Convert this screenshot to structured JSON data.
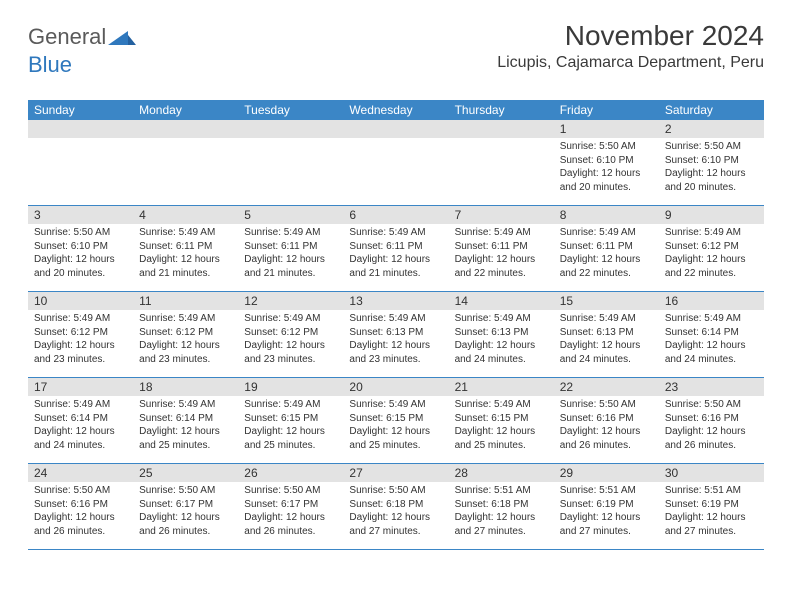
{
  "logo": {
    "text_general": "General",
    "text_blue": "Blue",
    "accent_color": "#2f78bd",
    "gray_color": "#5a5a5a"
  },
  "header": {
    "month_title": "November 2024",
    "location": "Licupis, Cajamarca Department, Peru"
  },
  "colors": {
    "header_bg": "#3b86c6",
    "header_text": "#ffffff",
    "daynum_bg": "#e3e3e3",
    "border": "#3b86c6",
    "text": "#333333",
    "page_bg": "#ffffff"
  },
  "day_headers": [
    "Sunday",
    "Monday",
    "Tuesday",
    "Wednesday",
    "Thursday",
    "Friday",
    "Saturday"
  ],
  "weeks": [
    [
      {
        "num": "",
        "sunrise": "",
        "sunset": "",
        "daylight": ""
      },
      {
        "num": "",
        "sunrise": "",
        "sunset": "",
        "daylight": ""
      },
      {
        "num": "",
        "sunrise": "",
        "sunset": "",
        "daylight": ""
      },
      {
        "num": "",
        "sunrise": "",
        "sunset": "",
        "daylight": ""
      },
      {
        "num": "",
        "sunrise": "",
        "sunset": "",
        "daylight": ""
      },
      {
        "num": "1",
        "sunrise": "Sunrise: 5:50 AM",
        "sunset": "Sunset: 6:10 PM",
        "daylight": "Daylight: 12 hours and 20 minutes."
      },
      {
        "num": "2",
        "sunrise": "Sunrise: 5:50 AM",
        "sunset": "Sunset: 6:10 PM",
        "daylight": "Daylight: 12 hours and 20 minutes."
      }
    ],
    [
      {
        "num": "3",
        "sunrise": "Sunrise: 5:50 AM",
        "sunset": "Sunset: 6:10 PM",
        "daylight": "Daylight: 12 hours and 20 minutes."
      },
      {
        "num": "4",
        "sunrise": "Sunrise: 5:49 AM",
        "sunset": "Sunset: 6:11 PM",
        "daylight": "Daylight: 12 hours and 21 minutes."
      },
      {
        "num": "5",
        "sunrise": "Sunrise: 5:49 AM",
        "sunset": "Sunset: 6:11 PM",
        "daylight": "Daylight: 12 hours and 21 minutes."
      },
      {
        "num": "6",
        "sunrise": "Sunrise: 5:49 AM",
        "sunset": "Sunset: 6:11 PM",
        "daylight": "Daylight: 12 hours and 21 minutes."
      },
      {
        "num": "7",
        "sunrise": "Sunrise: 5:49 AM",
        "sunset": "Sunset: 6:11 PM",
        "daylight": "Daylight: 12 hours and 22 minutes."
      },
      {
        "num": "8",
        "sunrise": "Sunrise: 5:49 AM",
        "sunset": "Sunset: 6:11 PM",
        "daylight": "Daylight: 12 hours and 22 minutes."
      },
      {
        "num": "9",
        "sunrise": "Sunrise: 5:49 AM",
        "sunset": "Sunset: 6:12 PM",
        "daylight": "Daylight: 12 hours and 22 minutes."
      }
    ],
    [
      {
        "num": "10",
        "sunrise": "Sunrise: 5:49 AM",
        "sunset": "Sunset: 6:12 PM",
        "daylight": "Daylight: 12 hours and 23 minutes."
      },
      {
        "num": "11",
        "sunrise": "Sunrise: 5:49 AM",
        "sunset": "Sunset: 6:12 PM",
        "daylight": "Daylight: 12 hours and 23 minutes."
      },
      {
        "num": "12",
        "sunrise": "Sunrise: 5:49 AM",
        "sunset": "Sunset: 6:12 PM",
        "daylight": "Daylight: 12 hours and 23 minutes."
      },
      {
        "num": "13",
        "sunrise": "Sunrise: 5:49 AM",
        "sunset": "Sunset: 6:13 PM",
        "daylight": "Daylight: 12 hours and 23 minutes."
      },
      {
        "num": "14",
        "sunrise": "Sunrise: 5:49 AM",
        "sunset": "Sunset: 6:13 PM",
        "daylight": "Daylight: 12 hours and 24 minutes."
      },
      {
        "num": "15",
        "sunrise": "Sunrise: 5:49 AM",
        "sunset": "Sunset: 6:13 PM",
        "daylight": "Daylight: 12 hours and 24 minutes."
      },
      {
        "num": "16",
        "sunrise": "Sunrise: 5:49 AM",
        "sunset": "Sunset: 6:14 PM",
        "daylight": "Daylight: 12 hours and 24 minutes."
      }
    ],
    [
      {
        "num": "17",
        "sunrise": "Sunrise: 5:49 AM",
        "sunset": "Sunset: 6:14 PM",
        "daylight": "Daylight: 12 hours and 24 minutes."
      },
      {
        "num": "18",
        "sunrise": "Sunrise: 5:49 AM",
        "sunset": "Sunset: 6:14 PM",
        "daylight": "Daylight: 12 hours and 25 minutes."
      },
      {
        "num": "19",
        "sunrise": "Sunrise: 5:49 AM",
        "sunset": "Sunset: 6:15 PM",
        "daylight": "Daylight: 12 hours and 25 minutes."
      },
      {
        "num": "20",
        "sunrise": "Sunrise: 5:49 AM",
        "sunset": "Sunset: 6:15 PM",
        "daylight": "Daylight: 12 hours and 25 minutes."
      },
      {
        "num": "21",
        "sunrise": "Sunrise: 5:49 AM",
        "sunset": "Sunset: 6:15 PM",
        "daylight": "Daylight: 12 hours and 25 minutes."
      },
      {
        "num": "22",
        "sunrise": "Sunrise: 5:50 AM",
        "sunset": "Sunset: 6:16 PM",
        "daylight": "Daylight: 12 hours and 26 minutes."
      },
      {
        "num": "23",
        "sunrise": "Sunrise: 5:50 AM",
        "sunset": "Sunset: 6:16 PM",
        "daylight": "Daylight: 12 hours and 26 minutes."
      }
    ],
    [
      {
        "num": "24",
        "sunrise": "Sunrise: 5:50 AM",
        "sunset": "Sunset: 6:16 PM",
        "daylight": "Daylight: 12 hours and 26 minutes."
      },
      {
        "num": "25",
        "sunrise": "Sunrise: 5:50 AM",
        "sunset": "Sunset: 6:17 PM",
        "daylight": "Daylight: 12 hours and 26 minutes."
      },
      {
        "num": "26",
        "sunrise": "Sunrise: 5:50 AM",
        "sunset": "Sunset: 6:17 PM",
        "daylight": "Daylight: 12 hours and 26 minutes."
      },
      {
        "num": "27",
        "sunrise": "Sunrise: 5:50 AM",
        "sunset": "Sunset: 6:18 PM",
        "daylight": "Daylight: 12 hours and 27 minutes."
      },
      {
        "num": "28",
        "sunrise": "Sunrise: 5:51 AM",
        "sunset": "Sunset: 6:18 PM",
        "daylight": "Daylight: 12 hours and 27 minutes."
      },
      {
        "num": "29",
        "sunrise": "Sunrise: 5:51 AM",
        "sunset": "Sunset: 6:19 PM",
        "daylight": "Daylight: 12 hours and 27 minutes."
      },
      {
        "num": "30",
        "sunrise": "Sunrise: 5:51 AM",
        "sunset": "Sunset: 6:19 PM",
        "daylight": "Daylight: 12 hours and 27 minutes."
      }
    ]
  ]
}
